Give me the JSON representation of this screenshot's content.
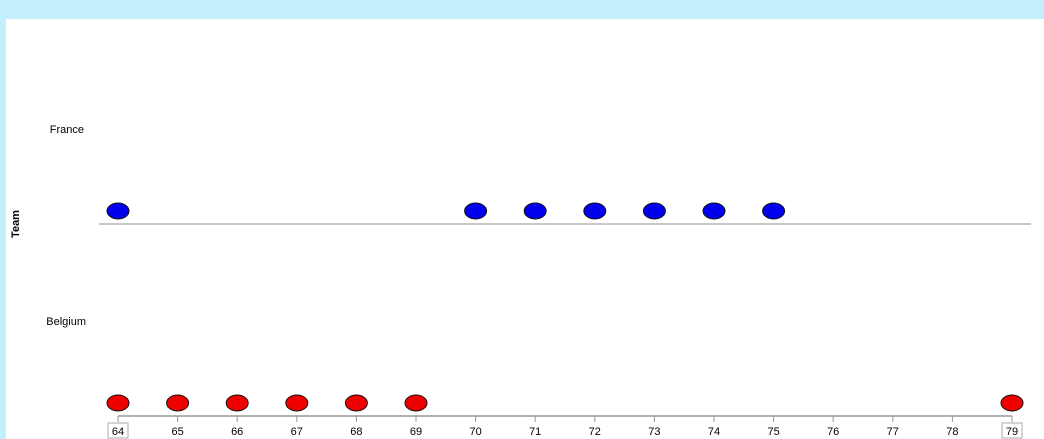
{
  "chart_data": {
    "type": "scatter",
    "ylabel": "Team",
    "xlabel": "",
    "xlim": [
      64,
      79
    ],
    "x_ticks": [
      "64",
      "65",
      "66",
      "67",
      "68",
      "69",
      "70",
      "71",
      "72",
      "73",
      "74",
      "75",
      "76",
      "77",
      "78",
      "79"
    ],
    "highlighted_ticks": [
      "64",
      "79"
    ],
    "categories": [
      "France",
      "Belgium"
    ],
    "series": [
      {
        "category": "France",
        "color": "#0000ee",
        "x": [
          64,
          70,
          71,
          72,
          73,
          74,
          75
        ]
      },
      {
        "category": "Belgium",
        "color": "#ee0000",
        "x": [
          64,
          65,
          66,
          67,
          68,
          69,
          79
        ]
      }
    ],
    "grid": false,
    "legend": "none"
  }
}
